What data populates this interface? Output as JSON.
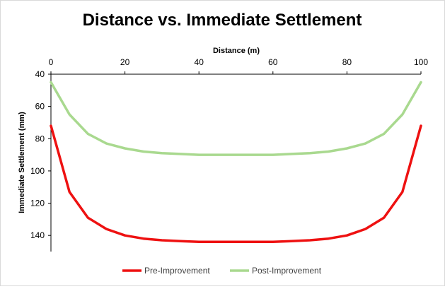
{
  "chart_data": {
    "type": "line",
    "title": "Distance vs. Immediate Settlement",
    "xlabel": "Distance (m)",
    "ylabel": "Immediate Settlement (mm)",
    "x_axis_position": "top",
    "y_axis_inverted": true,
    "xlim": [
      0,
      100
    ],
    "ylim": [
      40,
      150
    ],
    "xticks": [
      "0",
      "20",
      "40",
      "60",
      "80",
      "100"
    ],
    "xtick_values": [
      0,
      20,
      40,
      60,
      80,
      100
    ],
    "yticks": [
      "40",
      "60",
      "80",
      "100",
      "120",
      "140"
    ],
    "ytick_values": [
      40,
      60,
      80,
      100,
      120,
      140
    ],
    "grid": false,
    "legend_position": "bottom",
    "x": [
      0,
      5,
      10,
      15,
      20,
      25,
      30,
      35,
      40,
      45,
      50,
      55,
      60,
      65,
      70,
      75,
      80,
      85,
      90,
      95,
      100
    ],
    "series": [
      {
        "name": "Pre-Improvement",
        "color": "#ee1111",
        "values": [
          72,
          113,
          129,
          136,
          140,
          142,
          143,
          143.5,
          144,
          144,
          144,
          144,
          144,
          143.5,
          143,
          142,
          140,
          136,
          129,
          113,
          72
        ]
      },
      {
        "name": "Post-Improvement",
        "color": "#a9d98f",
        "values": [
          45,
          65,
          77,
          83,
          86,
          88,
          89,
          89.5,
          90,
          90,
          90,
          90,
          90,
          89.5,
          89,
          88,
          86,
          83,
          77,
          65,
          45
        ]
      }
    ]
  }
}
